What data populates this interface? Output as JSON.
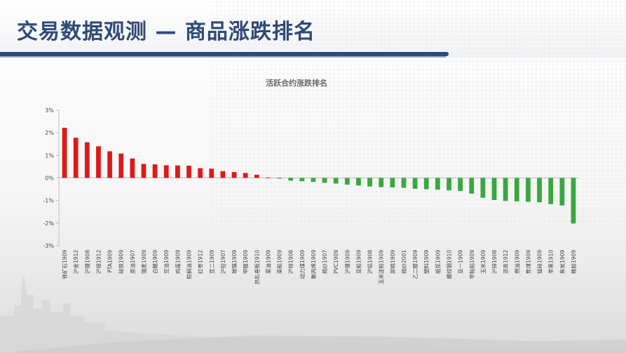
{
  "page": {
    "title": "交易数据观测 — 商品涨跌排名"
  },
  "colors": {
    "up": "#dd1a1a",
    "down": "#38a83f",
    "title": "#2f4a78",
    "axis": "#bfbfbf",
    "text": "#444444"
  },
  "chart_data": {
    "type": "bar",
    "title": "活跃合约涨跌排名",
    "xlabel": "",
    "ylabel": "",
    "ylim": [
      -3,
      3
    ],
    "yticks": [
      "3%",
      "2%",
      "1%",
      "0%",
      "-1%",
      "-2%",
      "-3%"
    ],
    "ytick_values": [
      3,
      2,
      1,
      0,
      -1,
      -2,
      -3
    ],
    "grid": false,
    "legend": "none",
    "categories": [
      "铁矿石1909",
      "沪金1912",
      "沪镍1908",
      "沪银1912",
      "PTA1909",
      "硅铁1909",
      "原油1907",
      "强麦1909",
      "白糖1909",
      "豆油1909",
      "鸡蛋1909",
      "棕榈油1909",
      "红枣1912",
      "豆二1909",
      "沪铅1907",
      "玻璃1909",
      "甲醇1909",
      "热轧卷板1910",
      "菜油1909",
      "菜粕1909",
      "沪锌1908",
      "动力煤1909",
      "聚丙烯1909",
      "棉纱1907",
      "PVC1909",
      "沪镍1909",
      "豆粕1909",
      "沪铝1908",
      "玉米淀粉1909",
      "郑棉1909",
      "棉纱2001",
      "乙二醇1909",
      "塑料1909",
      "纸浆1909",
      "螺纹钢1910",
      "豆一1909",
      "早籼稻1909",
      "玉米1909",
      "沪锌1908",
      "沥青1912",
      "燃油1909",
      "焦煤1909",
      "锰硅1909",
      "苹果1910",
      "焦炭1909",
      "橡胶1909"
    ],
    "values": [
      2.22,
      1.78,
      1.58,
      1.4,
      1.18,
      1.08,
      0.86,
      0.62,
      0.6,
      0.56,
      0.55,
      0.54,
      0.43,
      0.41,
      0.3,
      0.26,
      0.22,
      0.14,
      0.02,
      0.0,
      -0.12,
      -0.15,
      -0.18,
      -0.22,
      -0.25,
      -0.3,
      -0.34,
      -0.38,
      -0.41,
      -0.42,
      -0.44,
      -0.48,
      -0.5,
      -0.52,
      -0.55,
      -0.58,
      -0.7,
      -0.88,
      -0.98,
      -1.02,
      -1.04,
      -1.06,
      -1.08,
      -1.16,
      -1.22,
      -2.02
    ]
  }
}
